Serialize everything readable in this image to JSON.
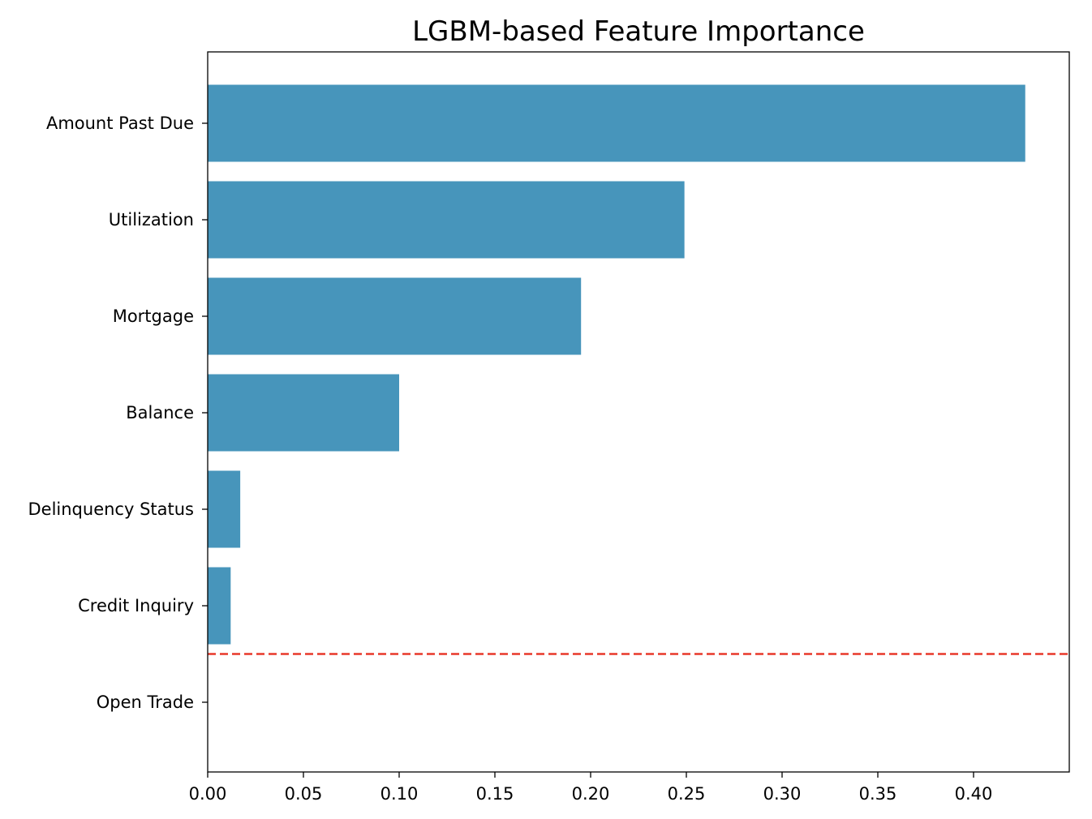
{
  "chart_data": {
    "type": "bar",
    "orientation": "horizontal",
    "title": "LGBM-based Feature Importance",
    "xlabel": "",
    "ylabel": "",
    "categories": [
      "Amount Past Due",
      "Utilization",
      "Mortgage",
      "Balance",
      "Delinquency Status",
      "Credit Inquiry",
      "Open Trade"
    ],
    "values": [
      0.427,
      0.249,
      0.195,
      0.1,
      0.017,
      0.012,
      0.0
    ],
    "xlim": [
      0.0,
      0.45
    ],
    "xticks": [
      "0.00",
      "0.05",
      "0.10",
      "0.15",
      "0.20",
      "0.25",
      "0.30",
      "0.35",
      "0.40"
    ],
    "xtick_values": [
      0.0,
      0.05,
      0.1,
      0.15,
      0.2,
      0.25,
      0.3,
      0.35,
      0.4
    ],
    "bar_color": "#4795bb",
    "threshold_line": {
      "style": "dashed",
      "orientation": "horizontal",
      "position": "between Credit Inquiry and Open Trade",
      "color": "#e8382a"
    },
    "grid": false,
    "legend": "none"
  }
}
